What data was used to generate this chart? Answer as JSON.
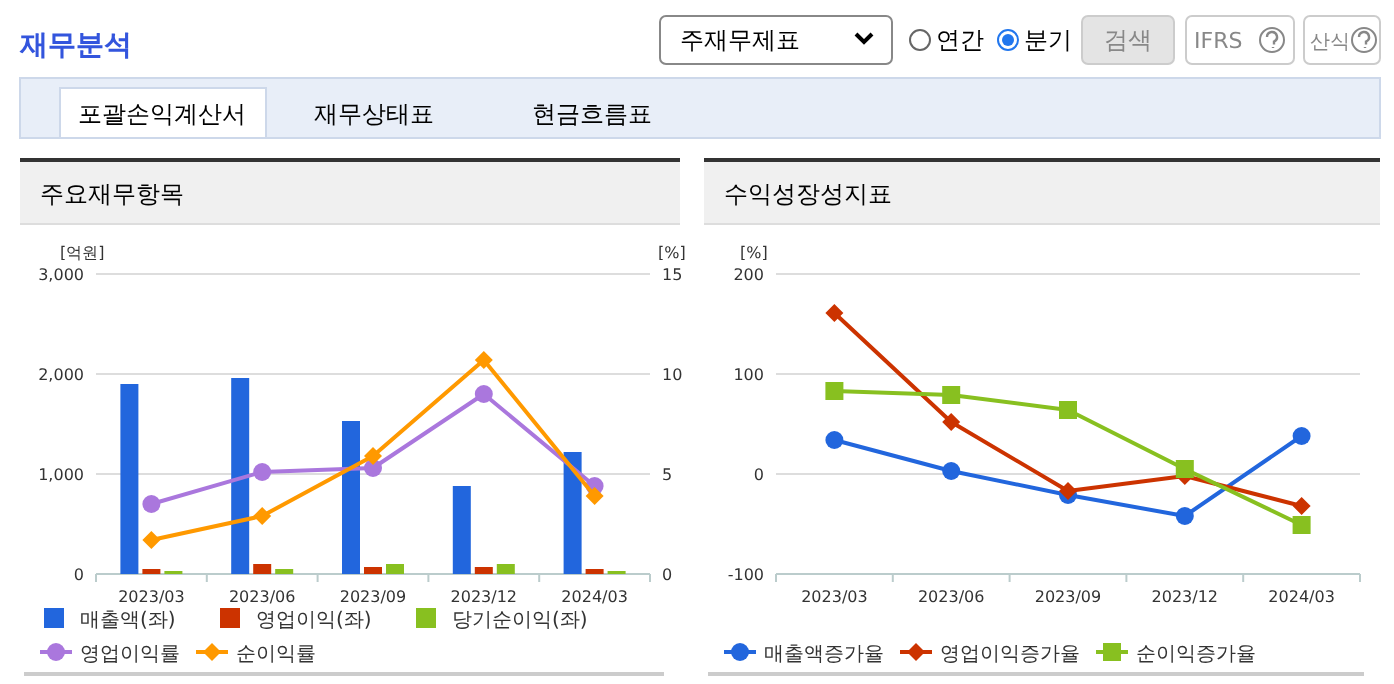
{
  "chart_data": [
    {
      "type": "other",
      "title": "재무분석",
      "annotations": [
        "주재무제표",
        "연간",
        "분기",
        "검색",
        "IFRS",
        "산식",
        "포괄손익계산서",
        "재무상태표",
        "현금흐름표"
      ]
    },
    {
      "type": "bar",
      "title": "주요재무항목",
      "categories": [
        "2023/03",
        "2023/06",
        "2023/09",
        "2023/12",
        "2024/03"
      ],
      "ylabel": "[억원]",
      "y2label": "[%]",
      "ylim": [
        0,
        3000
      ],
      "yticks": [
        0,
        {
          "value": 1000,
          "label": "1,000"
        },
        {
          "value": 2000,
          "label": "2,000"
        },
        {
          "value": 3000,
          "label": "3,000"
        }
      ],
      "y2lim": [
        0,
        15
      ],
      "y2ticks": [
        0,
        5,
        10,
        15
      ],
      "grid": "y",
      "legend": "bottom",
      "series": [
        {
          "name": "매출액(좌)",
          "color": "#2266dd",
          "values": [
            1900,
            1960,
            1530,
            880,
            1220
          ]
        },
        {
          "name": "영업이익(좌)",
          "color": "#cc3300",
          "values": [
            50,
            100,
            70,
            70,
            50
          ]
        },
        {
          "name": "당기순이익(좌)",
          "color": "#88c020",
          "values": [
            30,
            50,
            100,
            100,
            30
          ]
        },
        {
          "name": "영업이익률",
          "type": "line",
          "axis": "y2",
          "marker": "circle",
          "color": "#aa77dd",
          "values": [
            3.5,
            5.1,
            5.3,
            9.0,
            4.4
          ]
        },
        {
          "name": "순이익률",
          "type": "line",
          "axis": "y2",
          "marker": "diamond",
          "color": "#ff9900",
          "values": [
            1.7,
            2.9,
            5.9,
            10.7,
            3.9
          ]
        }
      ]
    },
    {
      "type": "line",
      "title": "수익성장성지표",
      "categories": [
        "2023/03",
        "2023/06",
        "2023/09",
        "2023/12",
        "2024/03"
      ],
      "ylabel": "[%]",
      "ylim": [
        -100,
        200
      ],
      "yticks": [
        -100,
        0,
        100,
        200
      ],
      "grid": "y",
      "legend": "bottom",
      "series": [
        {
          "name": "매출액증가율",
          "marker": "circle",
          "color": "#2266dd",
          "values": [
            34,
            3,
            -21,
            -42,
            38
          ]
        },
        {
          "name": "영업이익증가율",
          "marker": "diamond",
          "color": "#cc3300",
          "values": [
            161,
            52,
            -17,
            -2,
            -32
          ]
        },
        {
          "name": "순이익증가율",
          "marker": "square",
          "color": "#88c020",
          "values": [
            83,
            79,
            64,
            5,
            -51
          ]
        }
      ]
    }
  ]
}
